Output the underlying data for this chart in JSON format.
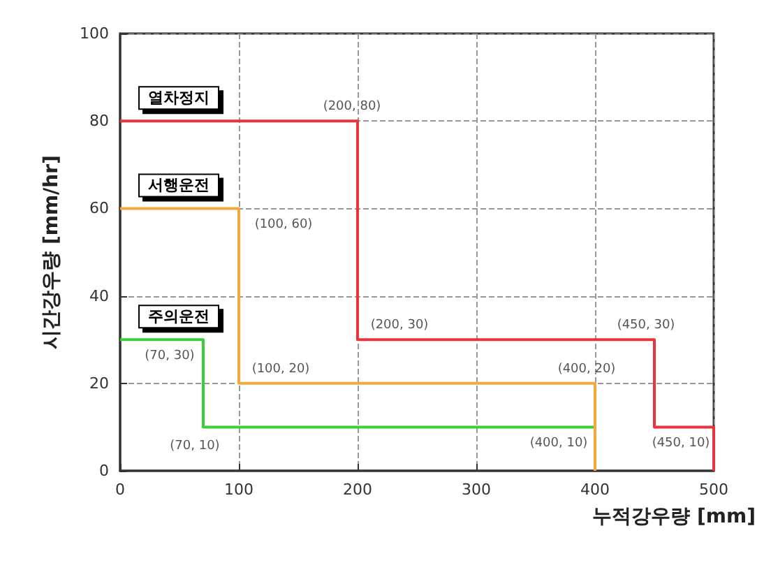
{
  "chart_data": {
    "type": "line",
    "xlabel": "누적강우량 [mm]",
    "ylabel": "시간강우량 [mm/hr]",
    "xlim": [
      0,
      500
    ],
    "xticks": [
      0,
      100,
      200,
      300,
      400,
      500
    ],
    "ylim": [
      0,
      100
    ],
    "yticks": [
      0,
      20,
      40,
      60,
      80,
      100
    ],
    "grid": true,
    "legend": false,
    "marker": "none",
    "line_style": "solid",
    "series": [
      {
        "name": "열차정지",
        "color": "#e8343c",
        "x": [
          0,
          200,
          200,
          450,
          450,
          500,
          500
        ],
        "values": [
          80,
          80,
          30,
          30,
          10,
          10,
          0
        ]
      },
      {
        "name": "서행운전",
        "color": "#f2a93b",
        "x": [
          0,
          100,
          100,
          400,
          400
        ],
        "values": [
          60,
          60,
          20,
          20,
          0
        ]
      },
      {
        "name": "주의운전",
        "color": "#3ccf3c",
        "x": [
          0,
          70,
          70,
          400,
          400
        ],
        "values": [
          30,
          30,
          10,
          10,
          0
        ]
      }
    ],
    "annotations": [
      {
        "text": "(200, 80)",
        "x": 200,
        "y": 80
      },
      {
        "text": "(100, 60)",
        "x": 100,
        "y": 60
      },
      {
        "text": "(70, 30)",
        "x": 70,
        "y": 30
      },
      {
        "text": "(70, 10)",
        "x": 70,
        "y": 10
      },
      {
        "text": "(100, 20)",
        "x": 100,
        "y": 20
      },
      {
        "text": "(200, 30)",
        "x": 200,
        "y": 30
      },
      {
        "text": "(450, 30)",
        "x": 450,
        "y": 30
      },
      {
        "text": "(400, 20)",
        "x": 400,
        "y": 20
      },
      {
        "text": "(400, 10)",
        "x": 400,
        "y": 10
      },
      {
        "text": "(450, 10)",
        "x": 450,
        "y": 10
      }
    ]
  }
}
